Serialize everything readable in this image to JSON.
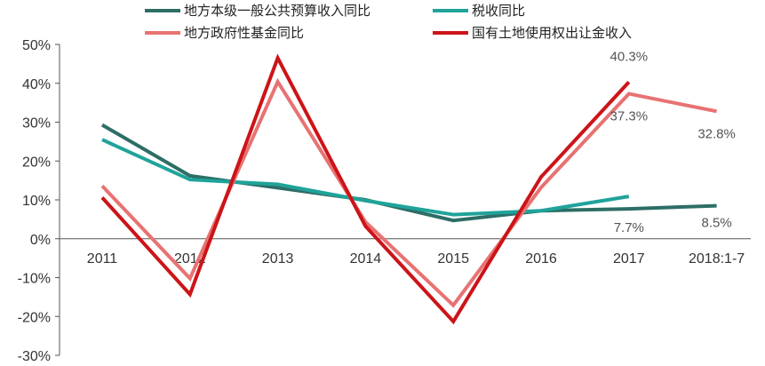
{
  "chart_data": {
    "type": "line",
    "categories": [
      "2011",
      "2012",
      "2013",
      "2014",
      "2015",
      "2016",
      "2017",
      "2018:1-7"
    ],
    "y_ticks": [
      "50%",
      "40%",
      "30%",
      "20%",
      "10%",
      "0%",
      "-10%",
      "-20%",
      "-30%"
    ],
    "ylim": [
      -30,
      50
    ],
    "y_unit": "%",
    "grid": false,
    "legend_position": "top",
    "series": [
      {
        "name": "地方本级一般公共预算收入同比",
        "color": "#2d6e66",
        "values": [
          29.3,
          16.2,
          13.1,
          10.0,
          4.7,
          7.2,
          7.7,
          8.5
        ]
      },
      {
        "name": "税收同比",
        "color": "#1fa39a",
        "values": [
          25.5,
          15.2,
          14.0,
          9.8,
          6.2,
          7.2,
          10.9,
          null
        ]
      },
      {
        "name": "地方政府性基金同比",
        "color": "#e87272",
        "values": [
          13.6,
          -10.2,
          40.4,
          4.3,
          -17.1,
          13.2,
          37.3,
          32.8
        ]
      },
      {
        "name": "国有土地使用权出让金收入",
        "color": "#cc1418",
        "values": [
          10.6,
          -14.3,
          46.5,
          3.2,
          -21.3,
          15.9,
          40.3,
          null
        ]
      }
    ],
    "annotations": [
      {
        "text": "40.3%",
        "series": 3,
        "index": 6
      },
      {
        "text": "37.3%",
        "series": 2,
        "index": 6
      },
      {
        "text": "32.8%",
        "series": 2,
        "index": 7
      },
      {
        "text": "7.7%",
        "series": 0,
        "index": 6
      },
      {
        "text": "8.5%",
        "series": 0,
        "index": 7
      }
    ]
  }
}
